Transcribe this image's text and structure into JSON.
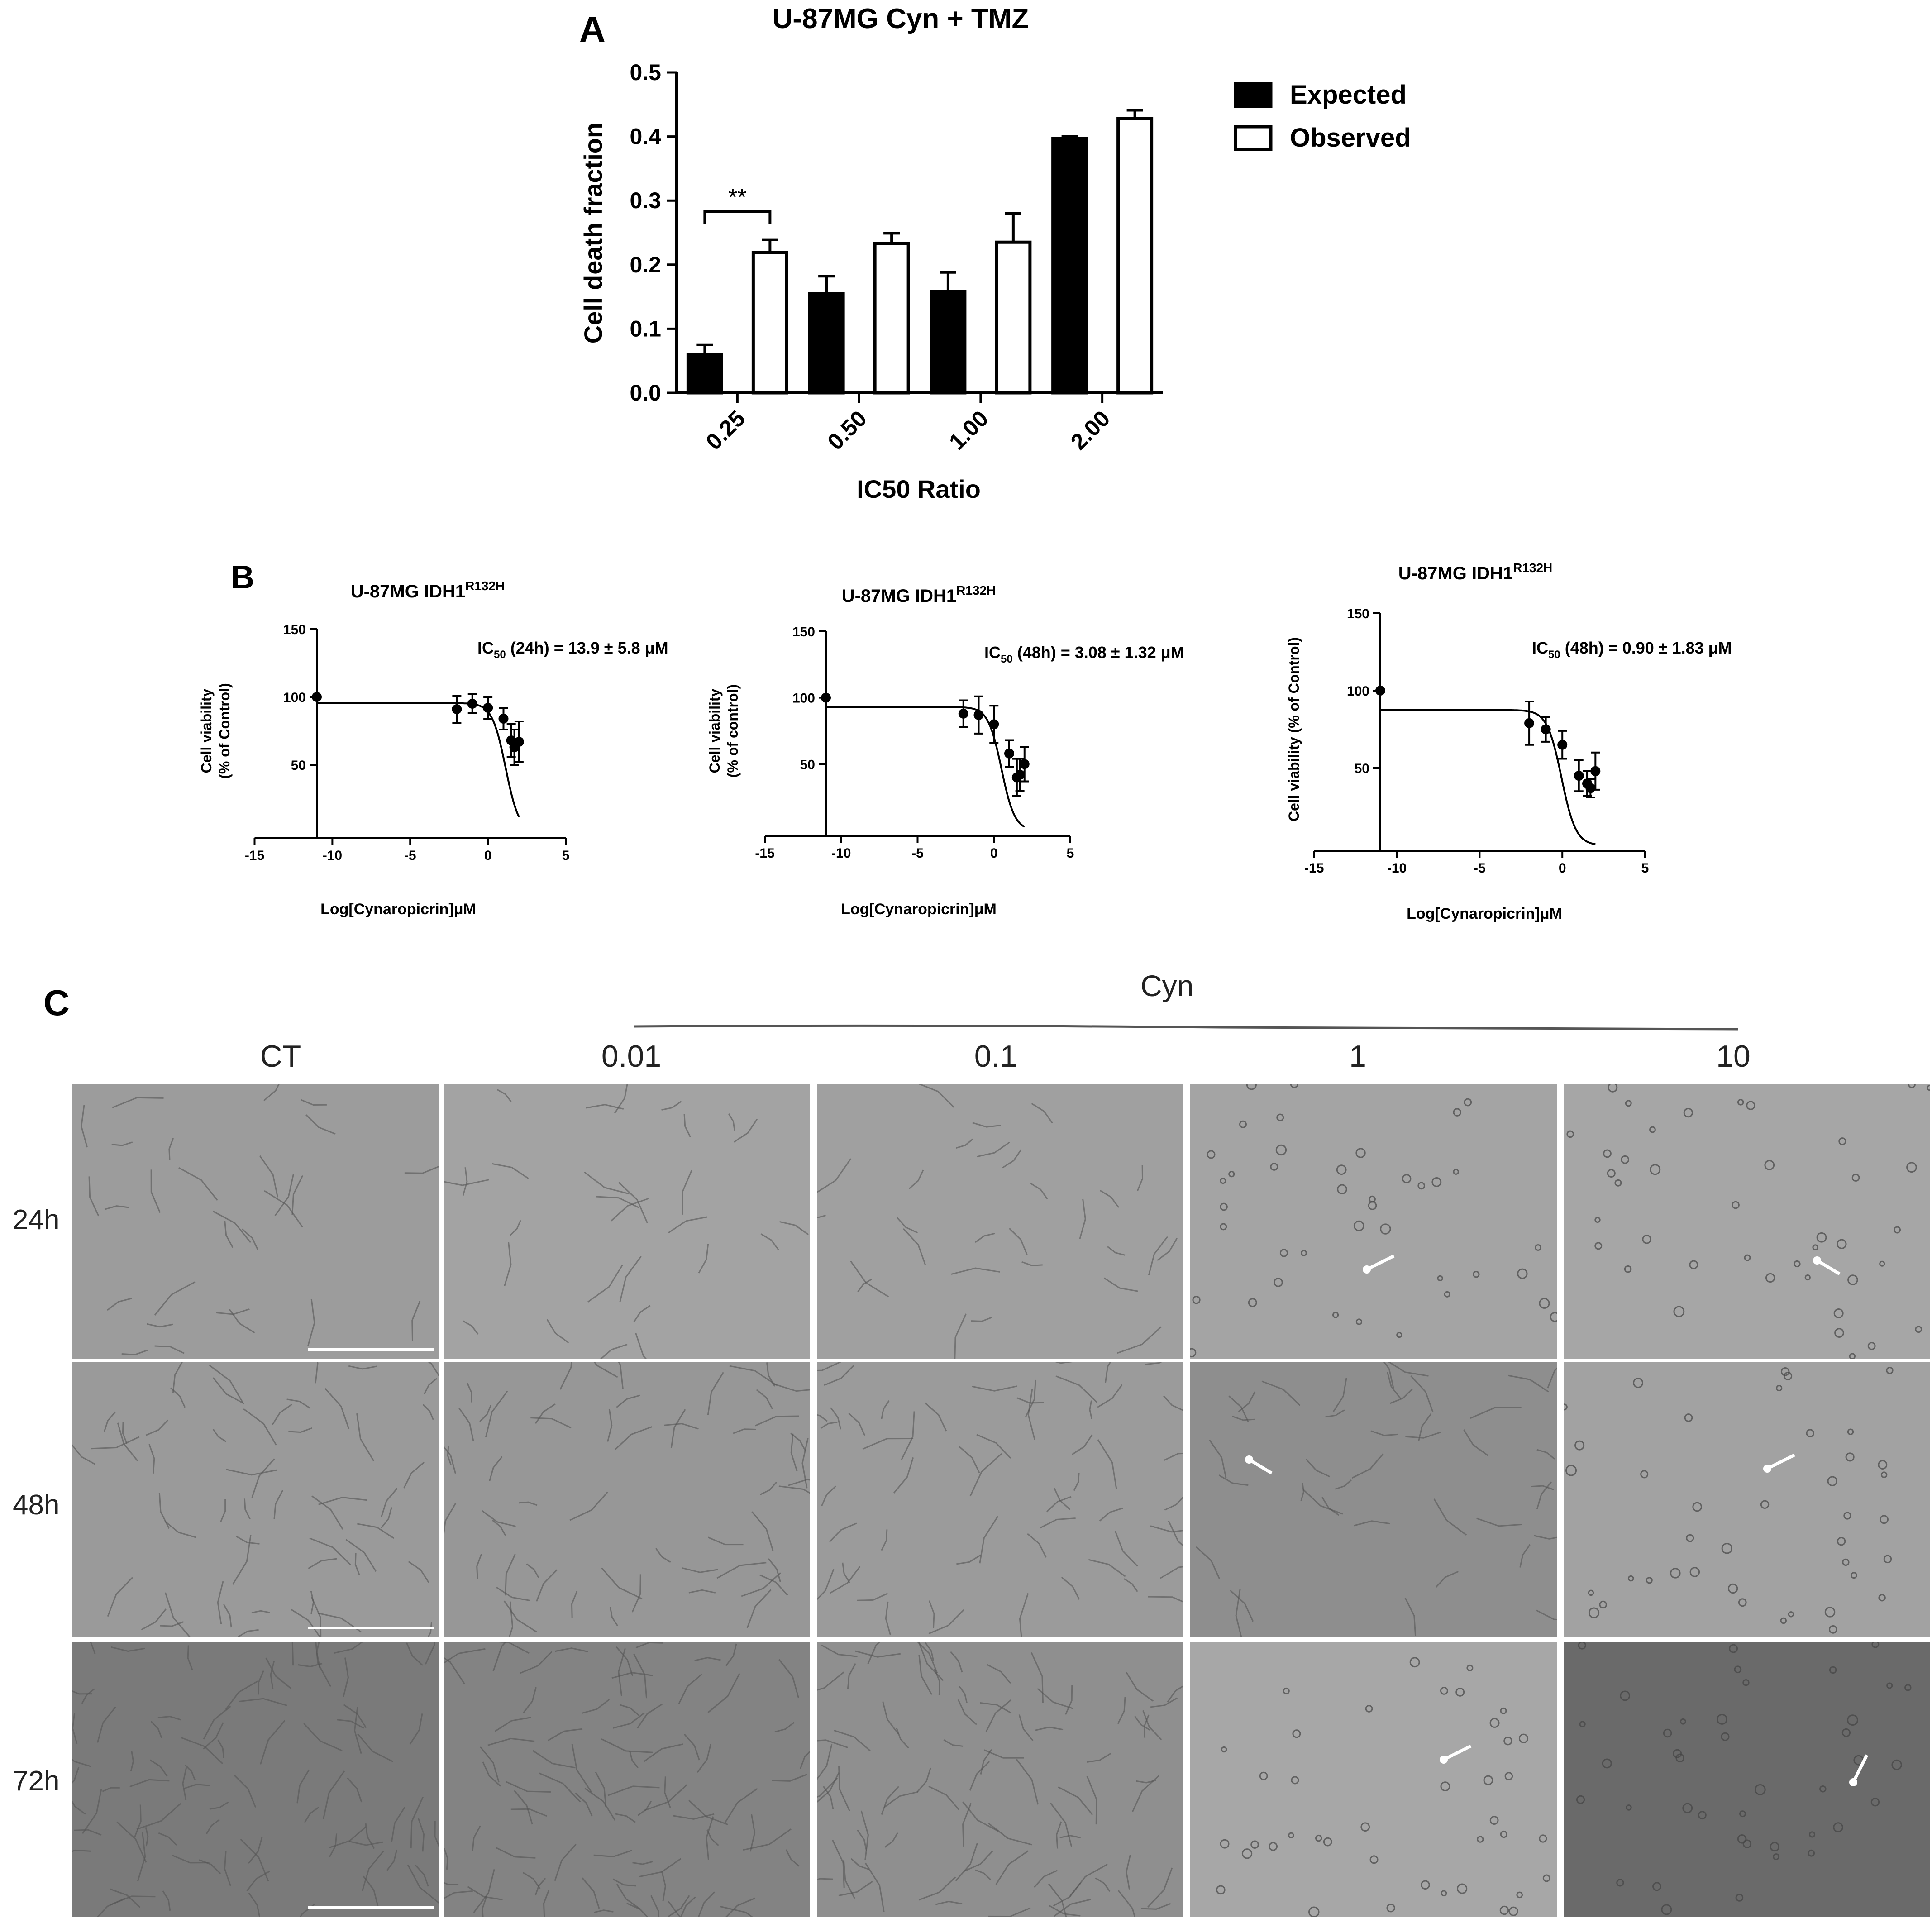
{
  "panel_letters": {
    "a": "A",
    "b": "B",
    "c": "C"
  },
  "chart_data": [
    {
      "type": "bar",
      "panel": "A",
      "title": "U-87MG Cyn + TMZ",
      "xlabel": "IC50 Ratio",
      "ylabel": "Cell death fraction",
      "categories": [
        "0.25",
        "0.50",
        "1.00",
        "2.00"
      ],
      "ylim": [
        0,
        0.5
      ],
      "yticks": [
        "0.0",
        "0.1",
        "0.2",
        "0.3",
        "0.4",
        "0.5"
      ],
      "legend_position": "top-right",
      "series": [
        {
          "name": "Expected",
          "fill": "#000000",
          "values": [
            0.06,
            0.155,
            0.158,
            0.397
          ],
          "errors": [
            0.015,
            0.027,
            0.03,
            0.003
          ]
        },
        {
          "name": "Observed",
          "fill": "#ffffff",
          "values": [
            0.219,
            0.233,
            0.235,
            0.428
          ],
          "errors": [
            0.02,
            0.016,
            0.045,
            0.013
          ]
        }
      ],
      "annotations": [
        {
          "category": "0.25",
          "text": "**"
        }
      ]
    },
    {
      "type": "scatter",
      "panel": "B",
      "title_main": "U-87MG IDH1",
      "title_sup": "R132H",
      "ylabel_line1": "Cell viability",
      "ylabel_line2": "(% of Control)",
      "xlabel": "Log[Cynaropicrin]μM",
      "annotation_main": "IC",
      "annotation_sub": "50",
      "annotation_rest": " (24h) = 13.9 ± 5.8 μM",
      "xlim": [
        -15,
        5
      ],
      "ylim": [
        0,
        150
      ],
      "xticks": [
        "-15",
        "-10",
        "-5",
        "0",
        "5"
      ],
      "yticks": [
        "50",
        "100",
        "150"
      ],
      "x": [
        -11,
        -2,
        -1,
        0,
        1,
        1.5,
        1.7,
        2
      ],
      "y": [
        100,
        91,
        95,
        92,
        84,
        68,
        63,
        67
      ],
      "errors": [
        0,
        10,
        7,
        8,
        8,
        12,
        13,
        15
      ],
      "curve": {
        "top": 95.5,
        "bottom": 0,
        "log_ic50": 1.14,
        "hill": 1
      }
    },
    {
      "type": "scatter",
      "panel": "B",
      "title_main": "U-87MG IDH1",
      "title_sup": "R132H",
      "ylabel_line1": "Cell viability",
      "ylabel_line2": "(% of control)",
      "xlabel": "Log[Cynaropicrin]μM",
      "annotation_main": "IC",
      "annotation_sub": "50",
      "annotation_rest": " (48h) = 3.08 ± 1.32 μM",
      "xlim": [
        -15,
        5
      ],
      "ylim": [
        0,
        150
      ],
      "xticks": [
        "-15",
        "-10",
        "-5",
        "0",
        "5"
      ],
      "yticks": [
        "50",
        "100",
        "150"
      ],
      "x": [
        -11,
        -2,
        -1,
        0,
        1,
        1.5,
        1.7,
        2
      ],
      "y": [
        100,
        88,
        87,
        80,
        58,
        40,
        42,
        50
      ],
      "errors": [
        0,
        10,
        14,
        14,
        10,
        14,
        12,
        13
      ],
      "curve": {
        "top": 93,
        "bottom": 0,
        "log_ic50": 0.49,
        "hill": 1
      }
    },
    {
      "type": "scatter",
      "panel": "B",
      "title_main": "U-87MG IDH1",
      "title_sup": "R132H",
      "ylabel_line1": "Cell viability (% of Control)",
      "ylabel_line2": "",
      "xlabel": "Log[Cynaropicrin]μM",
      "annotation_main": "IC",
      "annotation_sub": "50",
      "annotation_rest": " (48h) = 0.90 ± 1.83 μM",
      "xlim": [
        -15,
        5
      ],
      "ylim": [
        0,
        150
      ],
      "xticks": [
        "-15",
        "-10",
        "-5",
        "0",
        "5"
      ],
      "yticks": [
        "50",
        "100",
        "150"
      ],
      "x": [
        -11,
        -2,
        -1,
        0,
        1,
        1.5,
        1.7,
        2
      ],
      "y": [
        100,
        79,
        75,
        65,
        45,
        40,
        37,
        48
      ],
      "errors": [
        0,
        14,
        8,
        9,
        10,
        8,
        6,
        12
      ],
      "curve": {
        "top": 87.5,
        "bottom": 0,
        "log_ic50": -0.05,
        "hill": 1
      }
    }
  ],
  "panel_c": {
    "treatment_label": "Cyn",
    "columns": [
      "CT",
      "0.01",
      "0.1",
      "1",
      "10"
    ],
    "rows": [
      "24h",
      "48h",
      "72h"
    ]
  }
}
